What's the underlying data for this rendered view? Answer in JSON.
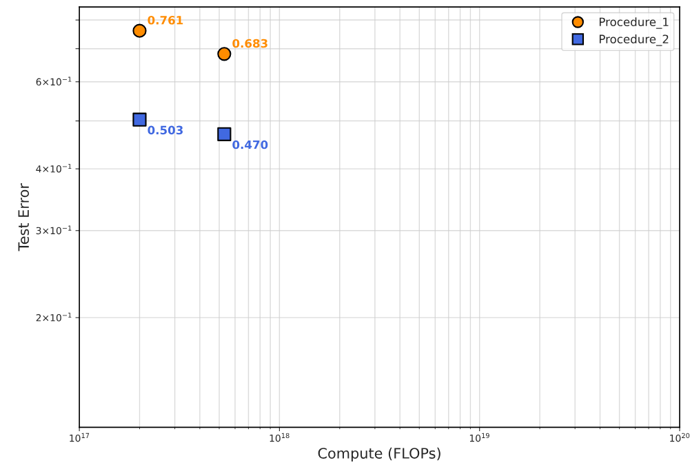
{
  "chart_data": {
    "type": "scatter",
    "xlabel": "Compute (FLOPs)",
    "ylabel": "Test Error",
    "log": "xy",
    "grid": true,
    "legend": "top right",
    "xlim": [
      1e+17,
      1e+20
    ],
    "xticks": [
      {
        "value": 1e+17,
        "label": "10$^{17}$"
      },
      {
        "value": 1e+18,
        "label": "10$^{18}$"
      },
      {
        "value": 1e+19,
        "label": "10$^{19}$"
      },
      {
        "value": 1e+20,
        "label": "10$^{20}$"
      }
    ],
    "ylim": [
      0.12,
      0.85
    ],
    "yticks": [
      {
        "value": 0.2,
        "label": "2×10$^{−1}$"
      },
      {
        "value": 0.3,
        "label": "3×10$^{−1}$"
      },
      {
        "value": 0.4,
        "label": "4×10$^{−1}$"
      },
      {
        "value": 0.5,
        "label": null
      },
      {
        "value": 0.6,
        "label": "6×10$^{−1}$"
      },
      {
        "value": 0.7,
        "label": null
      },
      {
        "value": 0.8,
        "label": null
      }
    ],
    "x": [
      200000000000000000,
      530000000000000000
    ],
    "series": [
      {
        "name": "Procedure_1",
        "color": "#ff8c00",
        "marker": "circle",
        "values": [
          0.761,
          0.683
        ],
        "value_labels": [
          "0.761",
          "0.683"
        ]
      },
      {
        "name": "Procedure_2",
        "color": "#4169e1",
        "marker": "square",
        "values": [
          0.503,
          0.47
        ],
        "value_labels": [
          "0.503",
          "0.470"
        ]
      }
    ]
  }
}
